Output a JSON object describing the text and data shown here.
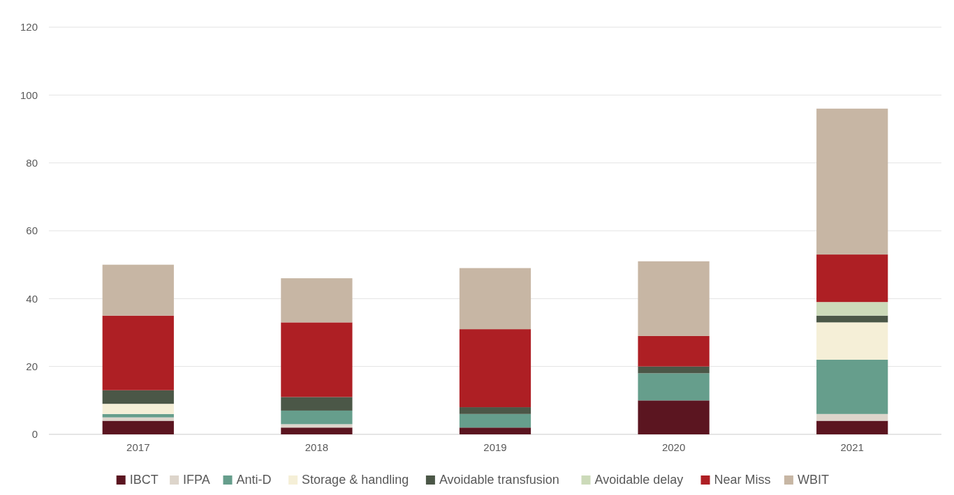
{
  "chart_data": {
    "type": "bar",
    "stacked": true,
    "categories": [
      "2017",
      "2018",
      "2019",
      "2020",
      "2021"
    ],
    "series": [
      {
        "name": "IBCT",
        "color": "#5b1520",
        "values": [
          4,
          2,
          2,
          10,
          4
        ]
      },
      {
        "name": "IFPA",
        "color": "#ddd5cb",
        "values": [
          1,
          1,
          0,
          0,
          2
        ]
      },
      {
        "name": "Anti-D",
        "color": "#669e8c",
        "values": [
          1,
          4,
          4,
          8,
          16
        ]
      },
      {
        "name": "Storage & handling",
        "color": "#f5efd7",
        "values": [
          3,
          0,
          0,
          0,
          11
        ]
      },
      {
        "name": "Avoidable transfusion",
        "color": "#4b5747",
        "values": [
          4,
          4,
          2,
          2,
          2
        ]
      },
      {
        "name": "Avoidable delay",
        "color": "#ccdab9",
        "values": [
          0,
          0,
          0,
          0,
          4
        ]
      },
      {
        "name": "Near Miss",
        "color": "#ae1f24",
        "values": [
          22,
          22,
          23,
          9,
          14
        ]
      },
      {
        "name": "WBIT",
        "color": "#c7b6a4",
        "values": [
          15,
          13,
          18,
          22,
          43
        ]
      }
    ],
    "ylim": [
      0,
      120
    ],
    "yticks": [
      0,
      20,
      40,
      60,
      80,
      100,
      120
    ],
    "grid": "y",
    "legend": "bottom"
  }
}
